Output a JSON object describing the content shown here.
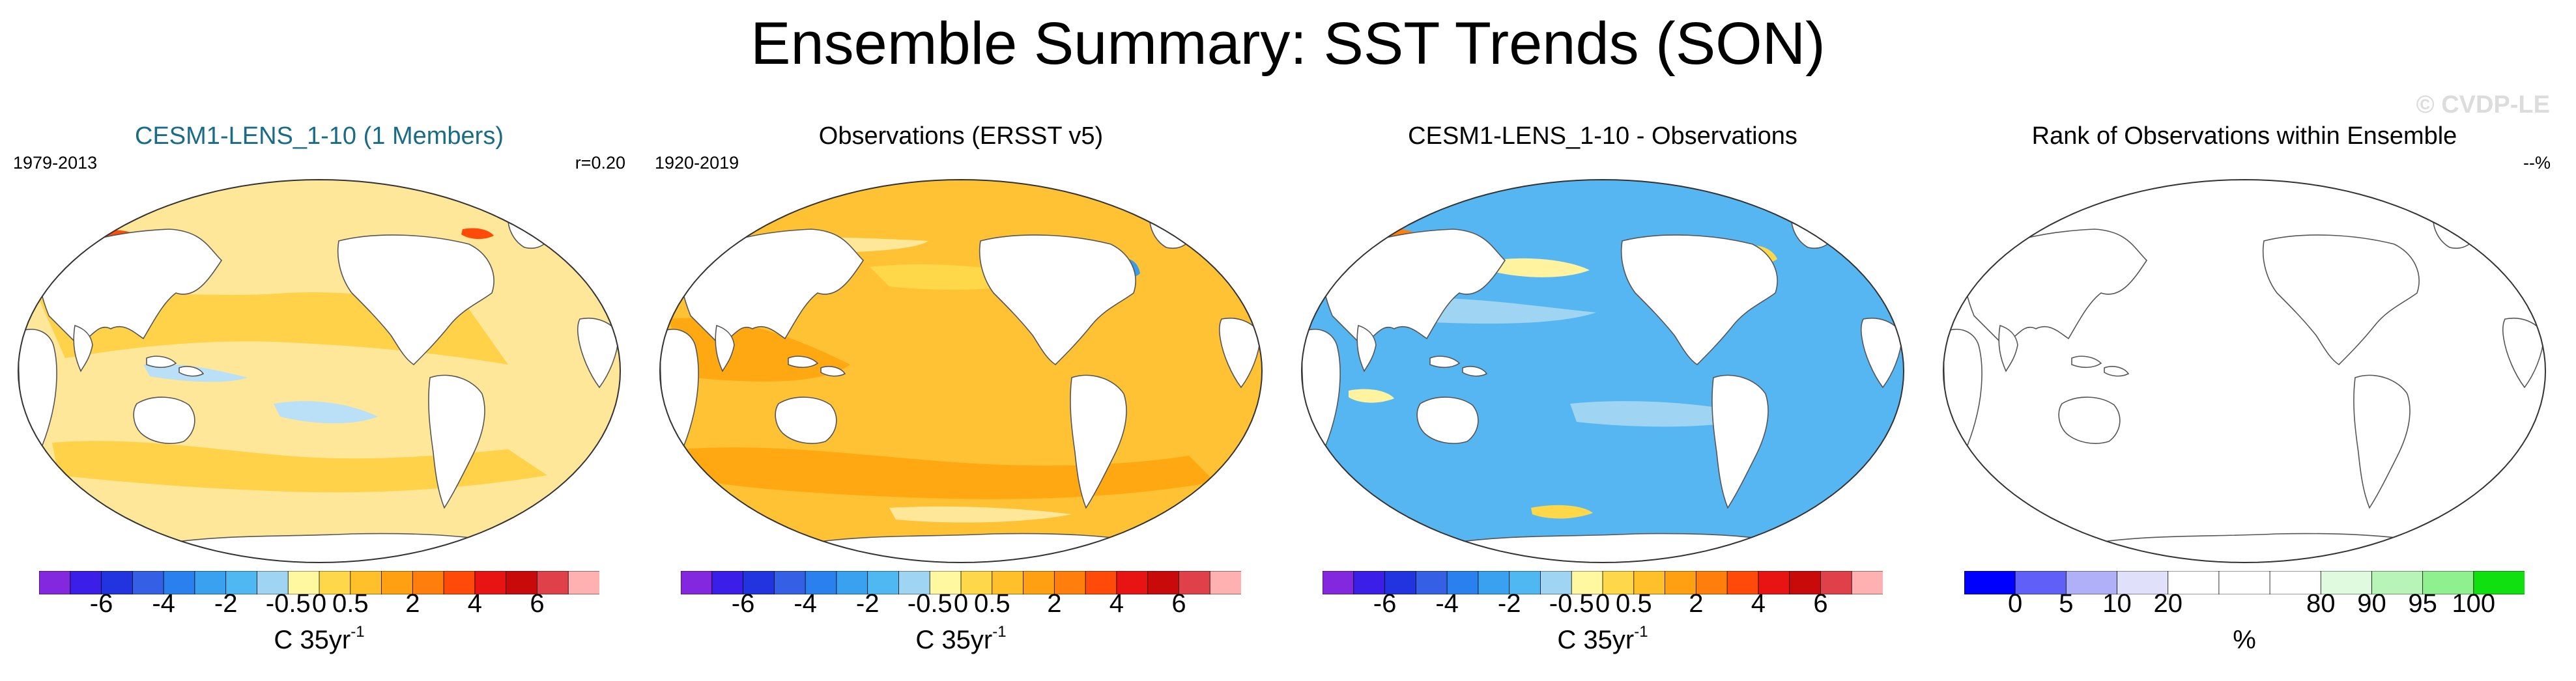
{
  "title": "Ensemble Summary: SST Trends (SON)",
  "watermark": "© CVDP-LE",
  "panels": [
    {
      "title": "CESM1-LENS_1-10 (1 Members)",
      "left_label": "1979-2013",
      "right_label": "r=0.20",
      "scheme": "model",
      "colorbar": [
        "#8428e0",
        "#3b1fe8",
        "#2234e0",
        "#3560e6",
        "#2a80ee",
        "#3aa0f0",
        "#4fb7f2",
        "#9fd4f2",
        "#fff8a0",
        "#ffd84a",
        "#ffc02a",
        "#ffa012",
        "#ff7e0c",
        "#ff4a0a",
        "#e81414",
        "#c80a0a",
        "#e0404a",
        "#ffb0b0"
      ],
      "ticks": [
        "-6",
        "-4",
        "-2",
        "-0.5",
        "0",
        "0.5",
        "2",
        "4",
        "6"
      ],
      "unit": "C 35yr",
      "unit_sup": "-1"
    },
    {
      "title": "Observations (ERSST v5)",
      "left_label": "1920-2019",
      "right_label": "",
      "scheme": "obs",
      "colorbar": [
        "#8428e0",
        "#3b1fe8",
        "#2234e0",
        "#3560e6",
        "#2a80ee",
        "#3aa0f0",
        "#4fb7f2",
        "#9fd4f2",
        "#fff8a0",
        "#ffd84a",
        "#ffc02a",
        "#ffa012",
        "#ff7e0c",
        "#ff4a0a",
        "#e81414",
        "#c80a0a",
        "#e0404a",
        "#ffb0b0"
      ],
      "ticks": [
        "-6",
        "-4",
        "-2",
        "-0.5",
        "0",
        "0.5",
        "2",
        "4",
        "6"
      ],
      "unit": "C 35yr",
      "unit_sup": "-1"
    },
    {
      "title": "CESM1-LENS_1-10 - Observations",
      "left_label": "",
      "right_label": "",
      "scheme": "diff",
      "colorbar": [
        "#8428e0",
        "#3b1fe8",
        "#2234e0",
        "#3560e6",
        "#2a80ee",
        "#3aa0f0",
        "#4fb7f2",
        "#9fd4f2",
        "#fff8a0",
        "#ffd84a",
        "#ffc02a",
        "#ffa012",
        "#ff7e0c",
        "#ff4a0a",
        "#e81414",
        "#c80a0a",
        "#e0404a",
        "#ffb0b0"
      ],
      "ticks": [
        "-6",
        "-4",
        "-2",
        "-0.5",
        "0",
        "0.5",
        "2",
        "4",
        "6"
      ],
      "unit": "C 35yr",
      "unit_sup": "-1"
    },
    {
      "title": "Rank of Observations within Ensemble",
      "left_label": "",
      "right_label": "--%",
      "scheme": "rank",
      "colorbar": [
        "#0000ff",
        "#6060f8",
        "#b0b0f8",
        "#e0e0fa",
        "#ffffff",
        "#ffffff",
        "#ffffff",
        "#e0fae0",
        "#b8f4b8",
        "#8ef08e",
        "#10e010"
      ],
      "ticks": [
        "0",
        "5",
        "10",
        "20",
        "80",
        "90",
        "95",
        "100"
      ],
      "unit": "%",
      "unit_sup": ""
    }
  ]
}
